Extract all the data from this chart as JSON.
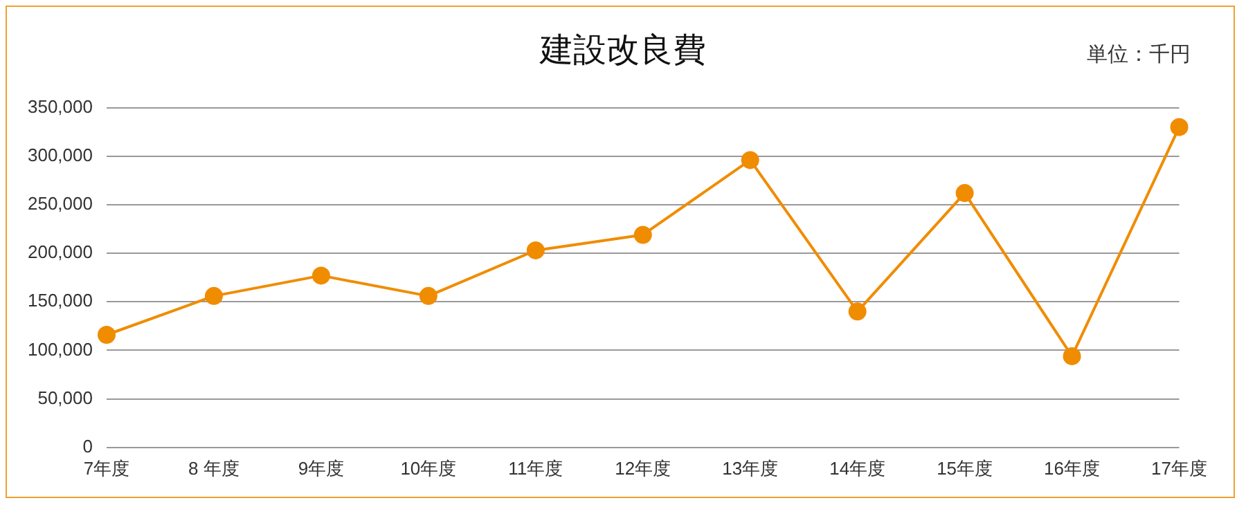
{
  "chart_data": {
    "type": "line",
    "title": "建設改良費",
    "subtitle": "単位：千円",
    "categories": [
      "7年度",
      "8 年度",
      "9年度",
      "10年度",
      "11年度",
      "12年度",
      "13年度",
      "14年度",
      "15年度",
      "16年度",
      "17年度"
    ],
    "series": [
      {
        "color": "#f08c00",
        "values": [
          116000,
          156000,
          177000,
          156000,
          203000,
          219000,
          296000,
          140000,
          262000,
          94000,
          330000
        ]
      }
    ],
    "ylim": [
      0,
      350000
    ],
    "yticks": [
      {
        "value": 0,
        "label": "0"
      },
      {
        "value": 50000,
        "label": "50,000"
      },
      {
        "value": 100000,
        "label": "100,000"
      },
      {
        "value": 150000,
        "label": "150,000"
      },
      {
        "value": 200000,
        "label": "200,000"
      },
      {
        "value": 250000,
        "label": "250,000"
      },
      {
        "value": 300000,
        "label": "300,000"
      },
      {
        "value": 350000,
        "label": "350,000"
      }
    ],
    "grid": "y",
    "marker": "circle",
    "line_style": "solid"
  }
}
